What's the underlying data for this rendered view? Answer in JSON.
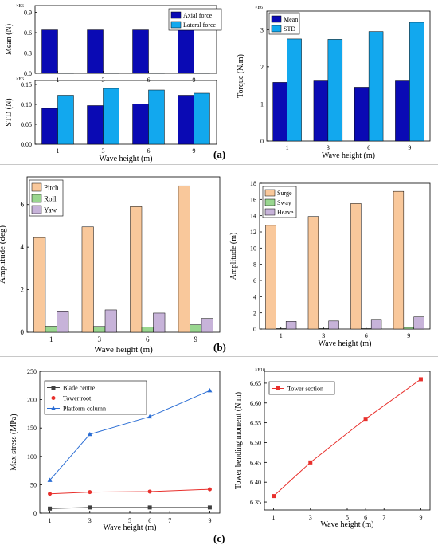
{
  "panels": {
    "a": "(a)",
    "b": "(b)",
    "c": "(c)"
  },
  "chart_data": [
    {
      "id": "mean-chart",
      "type": "bar",
      "categories": [
        "1",
        "3",
        "6",
        "9"
      ],
      "ylabel": "Mean (N)",
      "multiplier": "×E6",
      "ylim": [
        0,
        1.0
      ],
      "yticks": [
        "0.0",
        "0.3",
        "0.6",
        "0.9"
      ],
      "ytick_values": [
        0,
        0.3,
        0.6,
        0.9
      ],
      "legend_position": "top-right",
      "series": [
        {
          "name": "Axial force",
          "color": "#0a0ab4",
          "values": [
            0.64,
            0.64,
            0.64,
            0.64
          ]
        },
        {
          "name": "Lateral force",
          "color": "#12a8ee",
          "values": [
            0.003,
            0.003,
            0.003,
            0.003
          ]
        }
      ]
    },
    {
      "id": "std-chart",
      "type": "bar",
      "categories": [
        "1",
        "3",
        "6",
        "9"
      ],
      "xlabel": "Wave height (m)",
      "ylabel": "STD (N)",
      "multiplier": "×E6",
      "ylim": [
        0,
        0.16
      ],
      "yticks": [
        "0.00",
        "0.05",
        "0.10",
        "0.15"
      ],
      "ytick_values": [
        0,
        0.05,
        0.1,
        0.15
      ],
      "series": [
        {
          "name": "Axial force",
          "color": "#0a0ab4",
          "values": [
            0.09,
            0.097,
            0.101,
            0.123
          ]
        },
        {
          "name": "Lateral force",
          "color": "#12a8ee",
          "values": [
            0.123,
            0.14,
            0.136,
            0.128
          ]
        }
      ]
    },
    {
      "id": "torque-chart",
      "type": "bar",
      "categories": [
        "1",
        "3",
        "6",
        "9"
      ],
      "xlabel": "Wave height (m)",
      "ylabel": "Torque (N.m)",
      "multiplier": "×E6",
      "ylim": [
        0,
        3.5
      ],
      "yticks": [
        "0",
        "1",
        "2",
        "3"
      ],
      "ytick_values": [
        0,
        1,
        2,
        3
      ],
      "legend_position": "top-left",
      "series": [
        {
          "name": "Mean",
          "color": "#0a0ab4",
          "values": [
            1.58,
            1.62,
            1.45,
            1.62
          ]
        },
        {
          "name": "STD",
          "color": "#12a8ee",
          "values": [
            2.75,
            2.74,
            2.95,
            3.2
          ]
        }
      ]
    },
    {
      "id": "rotation-chart",
      "type": "bar",
      "categories": [
        "1",
        "3",
        "6",
        "9"
      ],
      "xlabel": "Wave height (m)",
      "ylabel": "Amplitude (deg)",
      "ylim": [
        0,
        7.3
      ],
      "yticks": [
        "0",
        "2",
        "4",
        "6"
      ],
      "ytick_values": [
        0,
        2,
        4,
        6
      ],
      "legend_position": "top-left",
      "series": [
        {
          "name": "Pitch",
          "color": "#f9c89b",
          "values": [
            4.45,
            4.95,
            5.9,
            6.88
          ]
        },
        {
          "name": "Roll",
          "color": "#99d68f",
          "values": [
            0.28,
            0.27,
            0.25,
            0.35
          ]
        },
        {
          "name": "Yaw",
          "color": "#c7b3d9",
          "values": [
            1.0,
            1.05,
            0.9,
            0.65
          ]
        }
      ]
    },
    {
      "id": "translation-chart",
      "type": "bar",
      "categories": [
        "1",
        "3",
        "6",
        "9"
      ],
      "xlabel": "Wave height (m)",
      "ylabel": "Amplitude (m)",
      "ylim": [
        0,
        18
      ],
      "yticks": [
        "0",
        "2",
        "4",
        "6",
        "8",
        "10",
        "12",
        "14",
        "16",
        "18"
      ],
      "ytick_values": [
        0,
        2,
        4,
        6,
        8,
        10,
        12,
        14,
        16,
        18
      ],
      "legend_position": "top-left",
      "series": [
        {
          "name": "Surge",
          "color": "#f9c89b",
          "values": [
            12.8,
            13.9,
            15.5,
            17.0
          ]
        },
        {
          "name": "Sway",
          "color": "#99d68f",
          "values": [
            0.05,
            0.05,
            0.05,
            0.2
          ]
        },
        {
          "name": "Heave",
          "color": "#c7b3d9",
          "values": [
            0.95,
            1.0,
            1.2,
            1.5
          ]
        }
      ]
    },
    {
      "id": "stress-chart",
      "type": "line",
      "xlabel": "Wave height (m)",
      "ylabel": "Max stress (MPa)",
      "xlim": [
        0.5,
        9.5
      ],
      "ylim": [
        0,
        250
      ],
      "xticks": [
        "1",
        "3",
        "5",
        "6",
        "7",
        "9"
      ],
      "xtick_values": [
        1,
        3,
        5,
        6,
        7,
        9
      ],
      "yticks": [
        "0",
        "50",
        "100",
        "150",
        "200",
        "250"
      ],
      "ytick_values": [
        0,
        50,
        100,
        150,
        200,
        250
      ],
      "legend_position": "top-left",
      "series": [
        {
          "name": "Blade centre",
          "color": "#404040",
          "marker": "square",
          "x": [
            1,
            3,
            6,
            9
          ],
          "values": [
            8,
            10,
            10,
            10
          ]
        },
        {
          "name": "Tower root",
          "color": "#e8302c",
          "marker": "circle",
          "x": [
            1,
            3,
            6,
            9
          ],
          "values": [
            34,
            37,
            38,
            42
          ]
        },
        {
          "name": "Platform column",
          "color": "#2a6dd4",
          "marker": "triangle",
          "x": [
            1,
            3,
            6,
            9
          ],
          "values": [
            58,
            139,
            170,
            216
          ]
        }
      ]
    },
    {
      "id": "moment-chart",
      "type": "line",
      "xlabel": "Wave height (m)",
      "ylabel": "Tower bending moment (N.m)",
      "multiplier": "×E10",
      "xlim": [
        0.5,
        9.5
      ],
      "ylim": [
        6.33,
        6.68
      ],
      "xticks": [
        "1",
        "3",
        "5",
        "6",
        "7",
        "9"
      ],
      "xtick_values": [
        1,
        3,
        5,
        6,
        7,
        9
      ],
      "yticks": [
        "6.35",
        "6.40",
        "6.45",
        "6.50",
        "6.55",
        "6.60",
        "6.65"
      ],
      "ytick_values": [
        6.35,
        6.4,
        6.45,
        6.5,
        6.55,
        6.6,
        6.65
      ],
      "legend_position": "top-left",
      "series": [
        {
          "name": "Tower section",
          "color": "#e8302c",
          "marker": "square",
          "x": [
            1,
            3,
            6,
            9
          ],
          "values": [
            6.365,
            6.45,
            6.56,
            6.66
          ]
        }
      ]
    }
  ]
}
